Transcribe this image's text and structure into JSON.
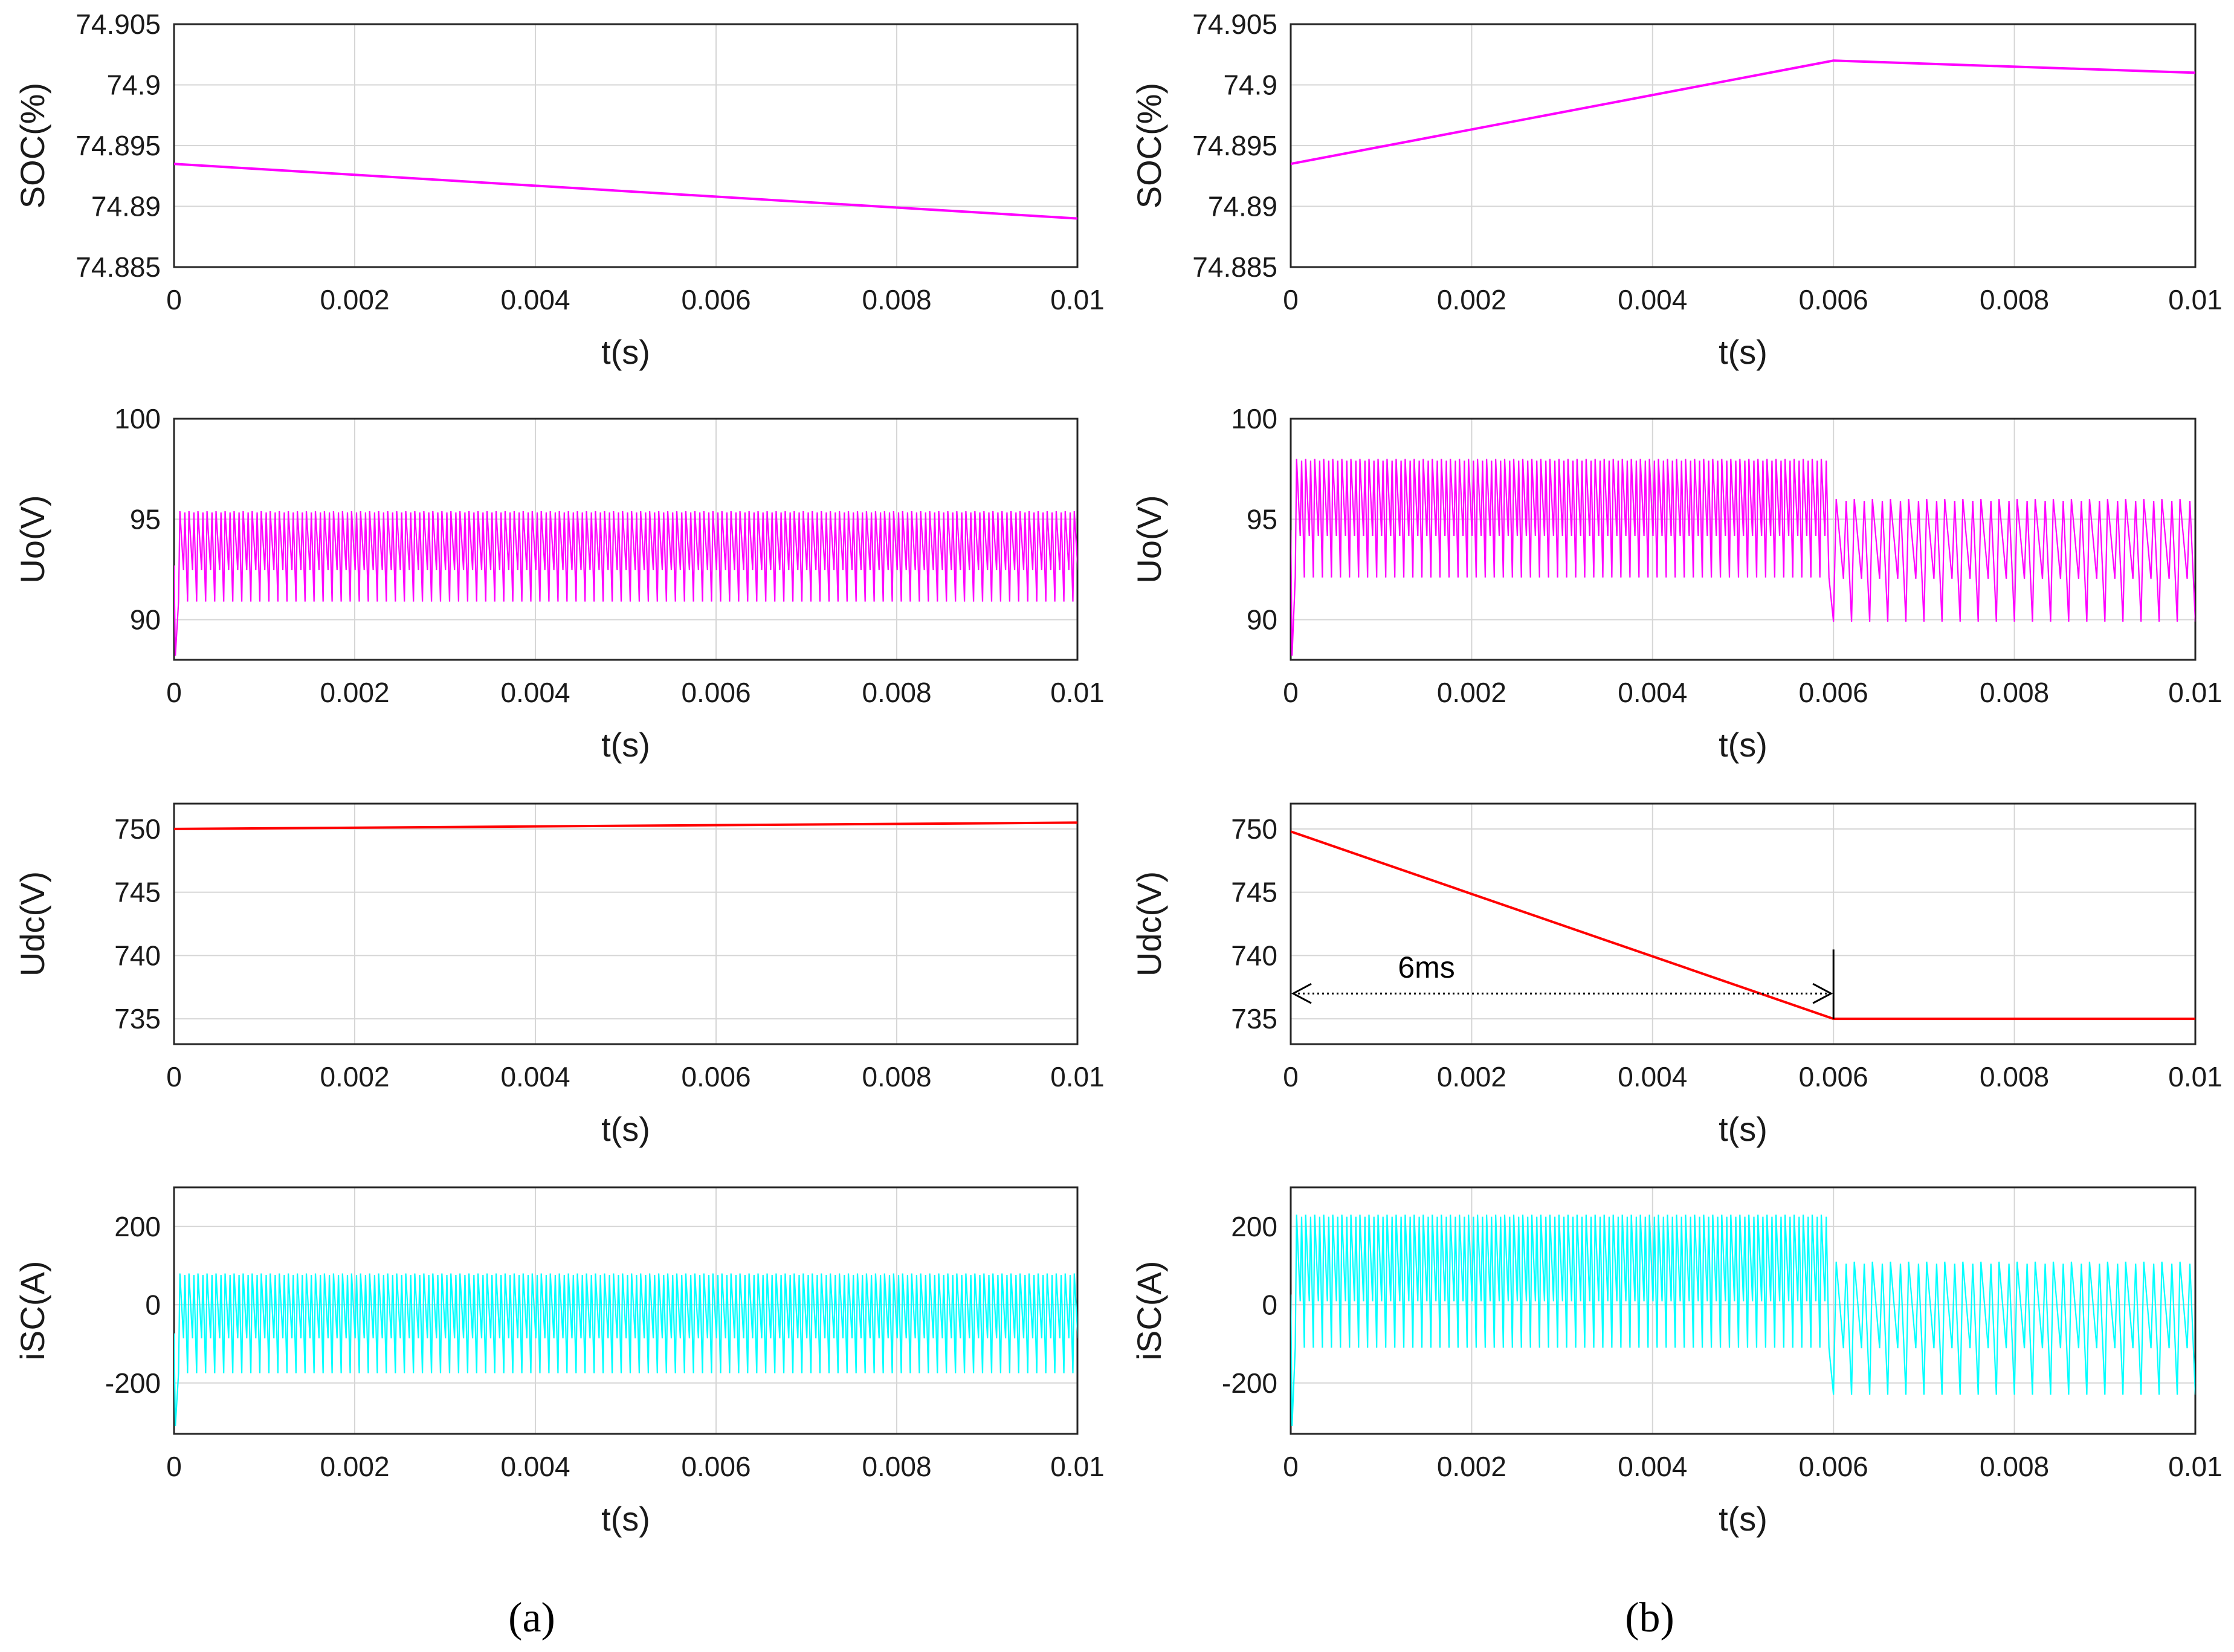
{
  "figure": {
    "panel_labels": [
      "(a)",
      "(b)"
    ]
  },
  "chart_data": [
    {
      "id": "a-soc",
      "type": "line",
      "column": "a",
      "xlabel": "t(s)",
      "ylabel": "SOC(%)",
      "xlim": [
        0,
        0.01
      ],
      "ylim": [
        74.885,
        74.905
      ],
      "xticks": [
        "0",
        "0.002",
        "0.004",
        "0.006",
        "0.008",
        "0.01"
      ],
      "yticks": [
        "74.885",
        "74.89",
        "74.895",
        "74.9",
        "74.905"
      ],
      "color": "#ff00ff",
      "series": [
        {
          "name": "SOC",
          "x": [
            0,
            0.01
          ],
          "y": [
            74.8935,
            74.889
          ]
        }
      ]
    },
    {
      "id": "a-uo",
      "type": "line",
      "column": "a",
      "xlabel": "t(s)",
      "ylabel": "Uo(V)",
      "xlim": [
        0,
        0.01
      ],
      "ylim": [
        88,
        100
      ],
      "xticks": [
        "0",
        "0.002",
        "0.004",
        "0.006",
        "0.008",
        "0.01"
      ],
      "yticks": [
        "90",
        "95",
        "100"
      ],
      "color": "#ff00ff",
      "series": [
        {
          "name": "Uo",
          "segments": [
            {
              "t_start": 5e-05,
              "t_end": 0.01,
              "period": 0.0001,
              "high": 95.4,
              "low": 90.9
            }
          ],
          "startup": {
            "t": 5e-05,
            "low": 88.2
          }
        }
      ]
    },
    {
      "id": "a-udc",
      "type": "line",
      "column": "a",
      "xlabel": "t(s)",
      "ylabel": "Udc(V)",
      "xlim": [
        0,
        0.01
      ],
      "ylim": [
        733,
        752
      ],
      "xticks": [
        "0",
        "0.002",
        "0.004",
        "0.006",
        "0.008",
        "0.01"
      ],
      "yticks": [
        "735",
        "740",
        "745",
        "750"
      ],
      "color": "#ff0000",
      "series": [
        {
          "name": "Udc",
          "x": [
            0,
            0.01
          ],
          "y": [
            750,
            750.5
          ]
        }
      ]
    },
    {
      "id": "a-isc",
      "type": "line",
      "column": "a",
      "xlabel": "t(s)",
      "ylabel": "iSC(A)",
      "xlim": [
        0,
        0.01
      ],
      "ylim": [
        -330,
        300
      ],
      "xticks": [
        "0",
        "0.002",
        "0.004",
        "0.006",
        "0.008",
        "0.01"
      ],
      "yticks": [
        "-200",
        "0",
        "200"
      ],
      "color": "#00ffff",
      "series": [
        {
          "name": "iSC",
          "segments": [
            {
              "t_start": 5e-05,
              "t_end": 0.01,
              "period": 0.0001,
              "high": 80,
              "low": -175
            }
          ],
          "startup": {
            "t": 5e-05,
            "low": -310
          }
        }
      ]
    },
    {
      "id": "b-soc",
      "type": "line",
      "column": "b",
      "xlabel": "t(s)",
      "ylabel": "SOC(%)",
      "xlim": [
        0,
        0.01
      ],
      "ylim": [
        74.885,
        74.905
      ],
      "xticks": [
        "0",
        "0.002",
        "0.004",
        "0.006",
        "0.008",
        "0.01"
      ],
      "yticks": [
        "74.885",
        "74.89",
        "74.895",
        "74.9",
        "74.905"
      ],
      "color": "#ff00ff",
      "series": [
        {
          "name": "SOC",
          "x": [
            0,
            0.006,
            0.01
          ],
          "y": [
            74.8935,
            74.902,
            74.901
          ]
        }
      ]
    },
    {
      "id": "b-uo",
      "type": "line",
      "column": "b",
      "xlabel": "t(s)",
      "ylabel": "Uo(V)",
      "xlim": [
        0,
        0.01
      ],
      "ylim": [
        88,
        100
      ],
      "xticks": [
        "0",
        "0.002",
        "0.004",
        "0.006",
        "0.008",
        "0.01"
      ],
      "yticks": [
        "90",
        "95",
        "100"
      ],
      "color": "#ff00ff",
      "series": [
        {
          "name": "Uo",
          "segments": [
            {
              "t_start": 5e-05,
              "t_end": 0.0059,
              "period": 0.0001,
              "high": 98.0,
              "low": 92.1
            },
            {
              "t_start": 0.006,
              "t_end": 0.01,
              "period": 0.0002,
              "high": 96.0,
              "low": 89.9
            }
          ],
          "startup": {
            "t": 5e-05,
            "low": 88.2
          }
        }
      ]
    },
    {
      "id": "b-udc",
      "type": "line",
      "column": "b",
      "xlabel": "t(s)",
      "ylabel": "Udc(V)",
      "xlim": [
        0,
        0.01
      ],
      "ylim": [
        733,
        752
      ],
      "xticks": [
        "0",
        "0.002",
        "0.004",
        "0.006",
        "0.008",
        "0.01"
      ],
      "yticks": [
        "735",
        "740",
        "745",
        "750"
      ],
      "color": "#ff0000",
      "series": [
        {
          "name": "Udc",
          "x": [
            0,
            0.006,
            0.01
          ],
          "y": [
            749.8,
            735,
            735
          ]
        }
      ],
      "annotation": {
        "text": "6ms",
        "x_from": 0,
        "x_to": 0.006,
        "y": 737,
        "marker_y_top": 740
      }
    },
    {
      "id": "b-isc",
      "type": "line",
      "column": "b",
      "xlabel": "t(s)",
      "ylabel": "iSC(A)",
      "xlim": [
        0,
        0.01
      ],
      "ylim": [
        -330,
        300
      ],
      "xticks": [
        "0",
        "0.002",
        "0.004",
        "0.006",
        "0.008",
        "0.01"
      ],
      "yticks": [
        "-200",
        "0",
        "200"
      ],
      "color": "#00ffff",
      "series": [
        {
          "name": "iSC",
          "segments": [
            {
              "t_start": 5e-05,
              "t_end": 0.0059,
              "period": 0.0001,
              "high": 230,
              "low": -110
            },
            {
              "t_start": 0.006,
              "t_end": 0.01,
              "period": 0.0002,
              "high": 110,
              "low": -230
            }
          ],
          "startup": {
            "t": 5e-05,
            "low": -310
          }
        }
      ]
    }
  ]
}
